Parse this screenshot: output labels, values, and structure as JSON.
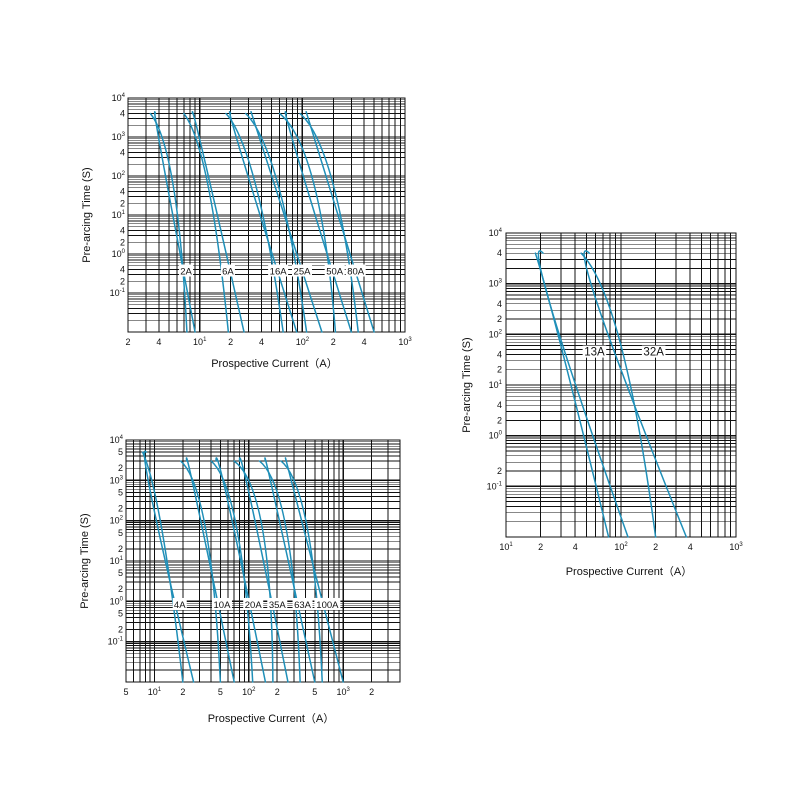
{
  "colors": {
    "curve": "#1f8fb8",
    "grid": "#111111",
    "background": "#ffffff"
  },
  "chart_data": [
    {
      "id": "chart1",
      "type": "line",
      "xscale": "log",
      "yscale": "log",
      "xlim": [
        2,
        1000
      ],
      "ylim": [
        0.01,
        10000
      ],
      "xlabel": "Prospective Current（A）",
      "ylabel": "Pre-arcing Time (S)",
      "xticks": [
        {
          "m": "2"
        },
        {
          "m": "4"
        },
        {
          "m": "10",
          "e": "1"
        },
        {
          "m": "2"
        },
        {
          "m": "4"
        },
        {
          "m": "10",
          "e": "2"
        },
        {
          "m": "2"
        },
        {
          "m": "4"
        },
        {
          "m": "10",
          "e": "3"
        }
      ],
      "yticks": [
        {
          "m": "10",
          "e": "4"
        },
        {
          "m": "4"
        },
        {
          "m": "10",
          "e": "3"
        },
        {
          "m": "4"
        },
        {
          "m": "10",
          "e": "2"
        },
        {
          "m": "4"
        },
        {
          "m": "2"
        },
        {
          "m": "10",
          "e": "1"
        },
        {
          "m": "4"
        },
        {
          "m": "2"
        },
        {
          "m": "10",
          "e": "0"
        },
        {
          "m": "4"
        },
        {
          "m": "2"
        },
        {
          "m": "10",
          "e": "-1"
        }
      ],
      "series": [
        {
          "name": "2A",
          "points": [
            [
              3.3,
              4000
            ],
            [
              5.5,
              60
            ],
            [
              7.5,
              0.01
            ]
          ],
          "side": "mid"
        },
        {
          "name": "",
          "points": [
            [
              3.7,
              4000
            ],
            [
              4.3,
              300
            ],
            [
              9,
              0.01
            ]
          ]
        },
        {
          "name": "6A",
          "points": [
            [
              7,
              4000
            ],
            [
              12,
              60
            ],
            [
              19,
              0.01
            ]
          ],
          "side": "mid"
        },
        {
          "name": "",
          "points": [
            [
              8.5,
              4000
            ],
            [
              11,
              300
            ],
            [
              27,
              0.01
            ]
          ]
        },
        {
          "name": "16A",
          "points": [
            [
              18,
              4000
            ],
            [
              35,
              60
            ],
            [
              65,
              0.01
            ]
          ],
          "side": "mid"
        },
        {
          "name": "",
          "points": [
            [
              20,
              4000
            ],
            [
              26,
              300
            ],
            [
              88,
              0.01
            ]
          ]
        },
        {
          "name": "25A",
          "points": [
            [
              28,
              4000
            ],
            [
              58,
              60
            ],
            [
              110,
              0.01
            ]
          ],
          "side": "mid"
        },
        {
          "name": "",
          "points": [
            [
              32,
              4000
            ],
            [
              44,
              300
            ],
            [
              155,
              0.01
            ]
          ]
        },
        {
          "name": "50A",
          "points": [
            [
              60,
              4000
            ],
            [
              130,
              60
            ],
            [
              210,
              0.01
            ]
          ],
          "side": "mid"
        },
        {
          "name": "",
          "points": [
            [
              70,
              4000
            ],
            [
              90,
              300
            ],
            [
              300,
              0.01
            ]
          ]
        },
        {
          "name": "80A",
          "points": [
            [
              95,
              4000
            ],
            [
              200,
              60
            ],
            [
              350,
              0.01
            ]
          ],
          "side": "mid"
        },
        {
          "name": "",
          "points": [
            [
              110,
              4000
            ],
            [
              150,
              300
            ],
            [
              500,
              0.01
            ]
          ]
        }
      ]
    },
    {
      "id": "chart2",
      "type": "line",
      "xscale": "log",
      "yscale": "log",
      "xlim": [
        10,
        1000
      ],
      "ylim": [
        0.01,
        10000
      ],
      "xlabel": "Prospective Current（A）",
      "ylabel": "Pre-arcing Time (S)",
      "xticks": [
        {
          "m": "10",
          "e": "1"
        },
        {
          "m": "2"
        },
        {
          "m": "4"
        },
        {
          "m": "10",
          "e": "2"
        },
        {
          "m": "2"
        },
        {
          "m": "4"
        },
        {
          "m": "10",
          "e": "3"
        }
      ],
      "yticks": [
        {
          "m": "10",
          "e": "4"
        },
        {
          "m": "4"
        },
        {
          "m": "10",
          "e": "3"
        },
        {
          "m": "4"
        },
        {
          "m": "2"
        },
        {
          "m": "10",
          "e": "2"
        },
        {
          "m": "4"
        },
        {
          "m": "2"
        },
        {
          "m": "10",
          "e": "1"
        },
        {
          "m": "4"
        },
        {
          "m": "2"
        },
        {
          "m": "10",
          "e": "0"
        },
        {
          "m": "2"
        },
        {
          "m": "10",
          "e": "-1"
        }
      ],
      "series": [
        {
          "name": "13A",
          "points": [
            [
              18,
              4000
            ],
            [
              30,
              60
            ],
            [
              78,
              0.01
            ]
          ],
          "side": "mid"
        },
        {
          "name": "",
          "points": [
            [
              21,
              4000
            ],
            [
              25,
              300
            ],
            [
              115,
              0.01
            ]
          ]
        },
        {
          "name": "32A",
          "points": [
            [
              45,
              4000
            ],
            [
              100,
              60
            ],
            [
              200,
              0.01
            ]
          ],
          "side": "mid"
        },
        {
          "name": "",
          "points": [
            [
              53,
              4000
            ],
            [
              65,
              300
            ],
            [
              370,
              0.01
            ]
          ]
        }
      ]
    },
    {
      "id": "chart3",
      "type": "line",
      "xscale": "log",
      "yscale": "log",
      "xlim": [
        5,
        4000
      ],
      "ylim": [
        0.01,
        10000
      ],
      "xlabel": "Prospective Current（A）",
      "ylabel": "Pre-arcing Time (S)",
      "xticks": [
        {
          "m": "5"
        },
        {
          "m": "10",
          "e": "1"
        },
        {
          "m": "2"
        },
        {
          "m": "5"
        },
        {
          "m": "10",
          "e": "2"
        },
        {
          "m": "2"
        },
        {
          "m": "5"
        },
        {
          "m": "10",
          "e": "3"
        },
        {
          "m": "2"
        }
      ],
      "yticks": [
        {
          "m": "10",
          "e": "4"
        },
        {
          "m": "5"
        },
        {
          "m": "2"
        },
        {
          "m": "10",
          "e": "3"
        },
        {
          "m": "5"
        },
        {
          "m": "2"
        },
        {
          "m": "10",
          "e": "2"
        },
        {
          "m": "5"
        },
        {
          "m": "2"
        },
        {
          "m": "10",
          "e": "1"
        },
        {
          "m": "5"
        },
        {
          "m": "2"
        },
        {
          "m": "10",
          "e": "0"
        },
        {
          "m": "5"
        },
        {
          "m": "2"
        },
        {
          "m": "10",
          "e": "-1"
        }
      ],
      "series": [
        {
          "name": "4A",
          "points": [
            [
              7.5,
              5000
            ],
            [
              12,
              60
            ],
            [
              20,
              0.01
            ]
          ],
          "side": "mid"
        },
        {
          "name": "",
          "points": [
            [
              8.2,
              5000
            ],
            [
              9.5,
              300
            ],
            [
              26,
              0.01
            ]
          ]
        },
        {
          "name": "10A",
          "points": [
            [
              19,
              3000
            ],
            [
              35,
              60
            ],
            [
              50,
              0.01
            ]
          ],
          "side": "mid"
        },
        {
          "name": "",
          "points": [
            [
              22,
              3000
            ],
            [
              28,
              300
            ],
            [
              70,
              0.01
            ]
          ]
        },
        {
          "name": "20A",
          "points": [
            [
              40,
              3000
            ],
            [
              75,
              60
            ],
            [
              110,
              0.01
            ]
          ],
          "side": "mid"
        },
        {
          "name": "",
          "points": [
            [
              45,
              3000
            ],
            [
              60,
              300
            ],
            [
              150,
              0.01
            ]
          ]
        },
        {
          "name": "35A",
          "points": [
            [
              70,
              3000
            ],
            [
              140,
              60
            ],
            [
              180,
              0.01
            ]
          ],
          "side": "mid"
        },
        {
          "name": "",
          "points": [
            [
              80,
              3000
            ],
            [
              105,
              300
            ],
            [
              260,
              0.01
            ]
          ]
        },
        {
          "name": "63A",
          "points": [
            [
              130,
              3000
            ],
            [
              250,
              60
            ],
            [
              350,
              0.01
            ]
          ],
          "side": "mid"
        },
        {
          "name": "",
          "points": [
            [
              150,
              3000
            ],
            [
              190,
              300
            ],
            [
              500,
              0.01
            ]
          ]
        },
        {
          "name": "100A",
          "points": [
            [
              220,
              3000
            ],
            [
              420,
              60
            ],
            [
              600,
              0.01
            ]
          ],
          "side": "mid"
        },
        {
          "name": "",
          "points": [
            [
              250,
              3000
            ],
            [
              320,
              300
            ],
            [
              1000,
              0.01
            ]
          ]
        }
      ]
    }
  ]
}
